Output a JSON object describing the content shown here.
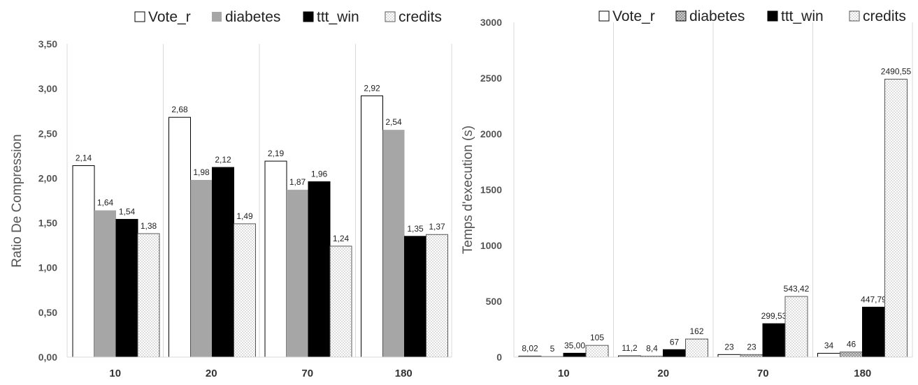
{
  "chart_data": [
    {
      "type": "bar",
      "title": "",
      "xlabel": "",
      "ylabel": "Ratio De Compression",
      "ylim": [
        0,
        3.5
      ],
      "yticks": [
        "0,00",
        "0,50",
        "1,00",
        "1,50",
        "2,00",
        "2,50",
        "3,00",
        "3,50"
      ],
      "grid": "vertical category separators",
      "legend": "top",
      "categories": [
        "10",
        "20",
        "70",
        "180"
      ],
      "series": [
        {
          "name": "Vote_r",
          "values": [
            2.14,
            2.68,
            2.19,
            2.92
          ],
          "labels": [
            "2,14",
            "2,68",
            "2,19",
            "2,92"
          ]
        },
        {
          "name": "diabetes",
          "values": [
            1.64,
            1.98,
            1.87,
            2.54
          ],
          "labels": [
            "1,64",
            "1,98",
            "1,87",
            "2,54"
          ]
        },
        {
          "name": "ttt_win",
          "values": [
            1.54,
            2.12,
            1.96,
            1.35
          ],
          "labels": [
            "1,54",
            "2,12",
            "1,96",
            "1,35"
          ]
        },
        {
          "name": "credits",
          "values": [
            1.38,
            1.49,
            1.24,
            1.37
          ],
          "labels": [
            "1,38",
            "1,49",
            "1,24",
            "1,37"
          ]
        }
      ]
    },
    {
      "type": "bar",
      "title": "",
      "xlabel": "",
      "ylabel": "Temps d'execution (s)",
      "ylim": [
        0,
        3000
      ],
      "yticks": [
        "0",
        "500",
        "1000",
        "1500",
        "2000",
        "2500",
        "3000"
      ],
      "grid": "vertical category separators",
      "legend": "top",
      "categories": [
        "10",
        "20",
        "70",
        "180"
      ],
      "series": [
        {
          "name": "Vote_r",
          "values": [
            8.02,
            11.2,
            23,
            34
          ],
          "labels": [
            "8,02",
            "11,2",
            "23",
            "34"
          ]
        },
        {
          "name": "diabetes",
          "values": [
            5,
            8.4,
            23,
            46
          ],
          "labels": [
            "5",
            "8,4",
            "23",
            "46"
          ]
        },
        {
          "name": "ttt_win",
          "values": [
            35.0,
            67,
            299.53,
            447.79
          ],
          "labels": [
            "35,00",
            "67",
            "299,53",
            "447,79"
          ]
        },
        {
          "name": "credits",
          "values": [
            105,
            162,
            543.42,
            2490.55
          ],
          "labels": [
            "105",
            "162",
            "543,42",
            "2490,55"
          ]
        }
      ]
    }
  ],
  "colors": {
    "vote_r": "#ffffff",
    "diabetes": "#a6a6a6",
    "ttt_win": "#000000",
    "credits": "dotted"
  }
}
